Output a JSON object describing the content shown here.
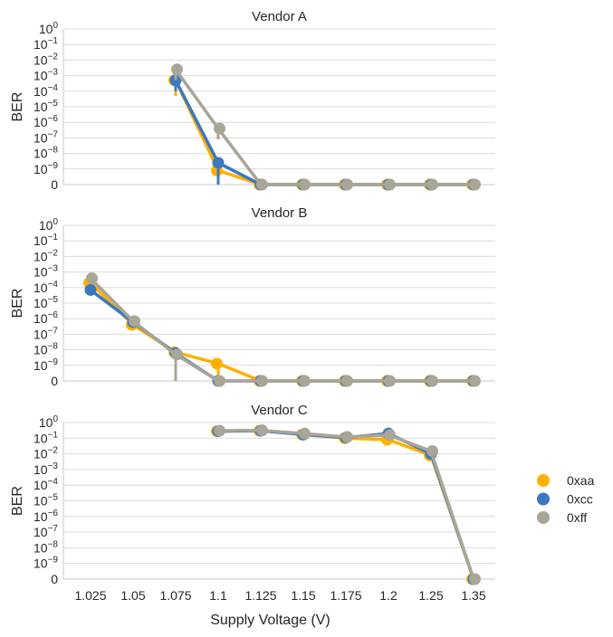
{
  "chart_data": [
    {
      "type": "line",
      "title": "Vendor A",
      "ylabel": "BER",
      "xlabel": "",
      "y_scale": "symlog (0 then 10^-9 … 10^0)",
      "grid": true,
      "series": [
        {
          "name": "0xaa",
          "values": [
            null,
            null,
            0.0005,
            8e-10,
            0,
            0,
            0,
            0,
            0,
            0
          ],
          "err_low": [
            null,
            null,
            5e-05,
            null,
            null,
            null,
            null,
            null,
            null,
            null
          ]
        },
        {
          "name": "0xcc",
          "values": [
            null,
            null,
            0.0005,
            2.5e-09,
            0,
            0,
            0,
            0,
            0,
            0
          ],
          "err_low": [
            null,
            null,
            0.0001,
            0,
            null,
            null,
            null,
            null,
            null,
            null
          ]
        },
        {
          "name": "0xff",
          "values": [
            null,
            null,
            0.0025,
            4e-07,
            0,
            0,
            0,
            0,
            0,
            0
          ],
          "err_low": [
            null,
            null,
            0.0005,
            8e-08,
            null,
            null,
            null,
            null,
            null,
            null
          ]
        }
      ]
    },
    {
      "type": "line",
      "title": "Vendor B",
      "ylabel": "BER",
      "xlabel": "",
      "y_scale": "symlog (0 then 10^-9 … 10^0)",
      "grid": true,
      "series": [
        {
          "name": "0xaa",
          "values": [
            0.0002,
            4e-07,
            7e-09,
            1.3e-09,
            0,
            0,
            0,
            0,
            0,
            0
          ],
          "err_low": [
            3e-05,
            2e-07,
            0,
            1e-10,
            null,
            null,
            null,
            null,
            null,
            null
          ]
        },
        {
          "name": "0xcc",
          "values": [
            7e-05,
            6e-07,
            6e-09,
            0,
            0,
            0,
            0,
            0,
            0,
            0
          ],
          "err_low": [
            null,
            null,
            0,
            null,
            null,
            null,
            null,
            null,
            null,
            null
          ]
        },
        {
          "name": "0xff",
          "values": [
            0.0004,
            7e-07,
            5e-09,
            0,
            0,
            0,
            0,
            0,
            0,
            0
          ],
          "err_low": [
            null,
            null,
            0,
            null,
            null,
            null,
            null,
            null,
            null,
            null
          ]
        }
      ]
    },
    {
      "type": "line",
      "title": "Vendor C",
      "ylabel": "BER",
      "xlabel": "Supply Voltage (V)",
      "y_scale": "symlog (0 then 10^-9 … 10^0)",
      "grid": true,
      "series": [
        {
          "name": "0xaa",
          "values": [
            null,
            null,
            null,
            0.28,
            0.3,
            0.17,
            0.1,
            0.08,
            0.008,
            0
          ]
        },
        {
          "name": "0xcc",
          "values": [
            null,
            null,
            null,
            0.28,
            0.3,
            0.17,
            0.11,
            0.2,
            0.01,
            0
          ]
        },
        {
          "name": "0xff",
          "values": [
            null,
            null,
            null,
            0.3,
            0.32,
            0.2,
            0.12,
            0.16,
            0.015,
            0
          ]
        }
      ]
    }
  ],
  "categories": [
    "1.025",
    "1.05",
    "1.075",
    "1.1",
    "1.125",
    "1.15",
    "1.175",
    "1.2",
    "1.25",
    "1.35"
  ],
  "y_ticks": [
    {
      "base": "0",
      "exp": ""
    },
    {
      "base": "10",
      "exp": "−9"
    },
    {
      "base": "10",
      "exp": "−8"
    },
    {
      "base": "10",
      "exp": "−7"
    },
    {
      "base": "10",
      "exp": "−6"
    },
    {
      "base": "10",
      "exp": "−5"
    },
    {
      "base": "10",
      "exp": "−4"
    },
    {
      "base": "10",
      "exp": "−3"
    },
    {
      "base": "10",
      "exp": "−2"
    },
    {
      "base": "10",
      "exp": "−1"
    },
    {
      "base": "10",
      "exp": "0"
    }
  ],
  "legend": {
    "placement": "right",
    "entries": [
      {
        "name": "0xaa",
        "color": "#FFB000"
      },
      {
        "name": "0xcc",
        "color": "#3B78C0"
      },
      {
        "name": "0xff",
        "color": "#A9A597"
      }
    ]
  }
}
